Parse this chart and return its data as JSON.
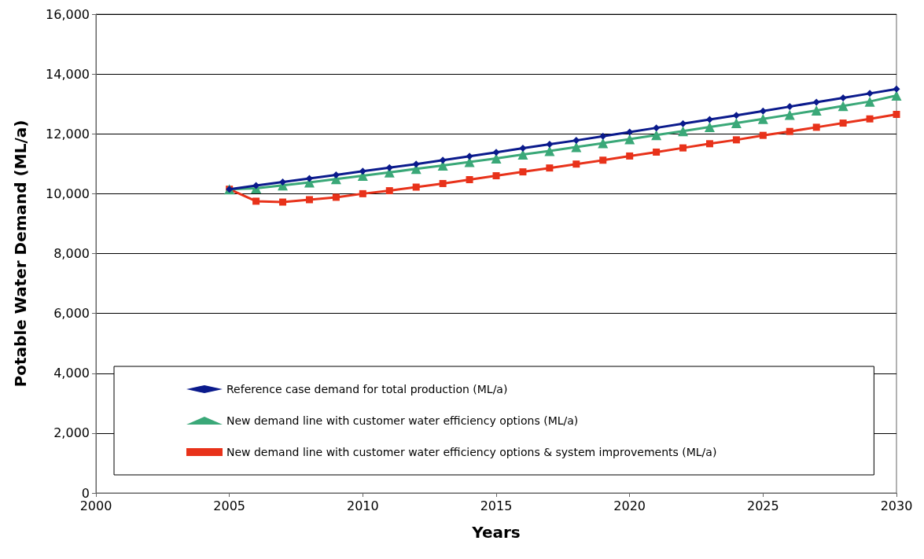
{
  "chart_data": {
    "type": "line",
    "xlabel": "Years",
    "ylabel": "Potable Water Demand (ML/a)",
    "x": [
      2005,
      2006,
      2007,
      2008,
      2009,
      2010,
      2011,
      2012,
      2013,
      2014,
      2015,
      2016,
      2017,
      2018,
      2019,
      2020,
      2021,
      2022,
      2023,
      2024,
      2025,
      2026,
      2027,
      2028,
      2029,
      2030
    ],
    "series": [
      {
        "name": "Reference case demand for total production (ML/a)",
        "color": "#0a1a8c",
        "marker": "diamond",
        "values": [
          10150,
          10270,
          10390,
          10510,
          10630,
          10750,
          10870,
          10990,
          11120,
          11250,
          11380,
          11520,
          11650,
          11780,
          11920,
          12060,
          12200,
          12340,
          12480,
          12620,
          12760,
          12910,
          13060,
          13200,
          13350,
          13500
        ]
      },
      {
        "name": "New demand line with customer water efficiency options (ML/a)",
        "color": "#3aa878",
        "marker": "triangle",
        "values": [
          10150,
          10180,
          10280,
          10380,
          10490,
          10600,
          10710,
          10830,
          10940,
          11060,
          11180,
          11310,
          11430,
          11560,
          11690,
          11820,
          11960,
          12090,
          12230,
          12360,
          12500,
          12640,
          12780,
          12930,
          13080,
          13280
        ]
      },
      {
        "name": "New demand line with customer water efficiency options & system improvements (ML/a)",
        "color": "#e8321a",
        "marker": "square",
        "values": [
          10150,
          9750,
          9720,
          9800,
          9880,
          10000,
          10100,
          10220,
          10340,
          10470,
          10600,
          10730,
          10860,
          10990,
          11120,
          11260,
          11390,
          11530,
          11670,
          11800,
          11950,
          12080,
          12220,
          12360,
          12500,
          12650
        ]
      }
    ],
    "xlim": [
      2000,
      2030
    ],
    "xticks": [
      2000,
      2005,
      2010,
      2015,
      2020,
      2025,
      2030
    ],
    "ylim": [
      0,
      16000
    ],
    "yticks": [
      {
        "value": 0,
        "label": "0"
      },
      {
        "value": 2000,
        "label": "2,000"
      },
      {
        "value": 4000,
        "label": "4,000"
      },
      {
        "value": 6000,
        "label": "6,000"
      },
      {
        "value": 8000,
        "label": "8,000"
      },
      {
        "value": 10000,
        "label": "10,000"
      },
      {
        "value": 12000,
        "label": "12,000"
      },
      {
        "value": 14000,
        "label": "14,000"
      },
      {
        "value": 16000,
        "label": "16,000"
      }
    ],
    "grid": "y",
    "legend": "bottom",
    "line_style": "solid"
  }
}
